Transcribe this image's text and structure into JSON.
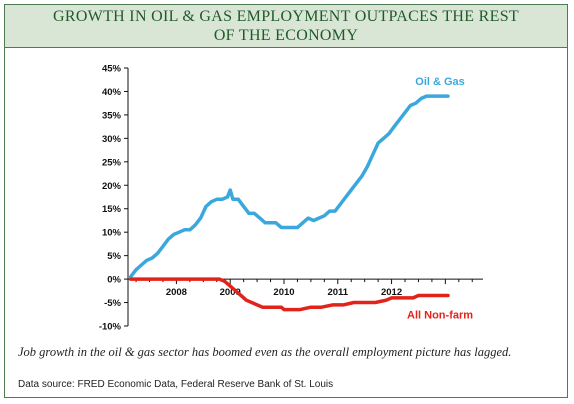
{
  "title": "GROWTH IN OIL & GAS EMPLOYMENT OUTPACES THE REST OF THE ECONOMY",
  "caption": "Job growth in the oil & gas sector has boomed even as the overall employment picture has lagged.",
  "source": "Data source: FRED Economic Data, Federal Reserve Bank of St. Louis",
  "colors": {
    "oil_gas": "#3aa8dc",
    "non_farm": "#e2231a",
    "title_bg": "#d9e6d5",
    "title_text": "#1f5b2a"
  },
  "chart_data": {
    "type": "line",
    "title": "",
    "xlabel": "",
    "ylabel": "",
    "xlim": [
      2007.1,
      2013.7
    ],
    "ylim": [
      -10,
      45
    ],
    "y_ticks": [
      -10,
      -5,
      0,
      5,
      10,
      15,
      20,
      25,
      30,
      35,
      40,
      45
    ],
    "y_tick_labels": [
      "-10%",
      "-5%",
      "0%",
      "5%",
      "10%",
      "15%",
      "20%",
      "25%",
      "30%",
      "35%",
      "40%",
      "45%"
    ],
    "x_ticks": [
      2008,
      2009,
      2010,
      2011,
      2012
    ],
    "x_tick_labels": [
      "2008",
      "2009",
      "2010",
      "2011",
      "2012"
    ],
    "grid": false,
    "series": [
      {
        "name": "Oil & Gas",
        "label_position": "top-right",
        "x": [
          2007.15,
          2007.25,
          2007.35,
          2007.45,
          2007.55,
          2007.65,
          2007.75,
          2007.85,
          2007.95,
          2008.05,
          2008.15,
          2008.25,
          2008.35,
          2008.45,
          2008.55,
          2008.65,
          2008.75,
          2008.85,
          2008.95,
          2009.0,
          2009.05,
          2009.15,
          2009.25,
          2009.35,
          2009.45,
          2009.55,
          2009.65,
          2009.75,
          2009.85,
          2009.95,
          2010.05,
          2010.15,
          2010.25,
          2010.35,
          2010.45,
          2010.55,
          2010.65,
          2010.75,
          2010.85,
          2010.95,
          2011.05,
          2011.15,
          2011.25,
          2011.35,
          2011.45,
          2011.55,
          2011.65,
          2011.75,
          2011.85,
          2011.95,
          2012.05,
          2012.15,
          2012.25,
          2012.35,
          2012.45,
          2012.55,
          2012.65,
          2012.75,
          2012.85,
          2012.95,
          2013.05
        ],
        "values": [
          0.5,
          2,
          3,
          4,
          4.5,
          5.5,
          7,
          8.5,
          9.5,
          10,
          10.5,
          10.5,
          11.5,
          13,
          15.5,
          16.5,
          17,
          17,
          17.5,
          19,
          17,
          17,
          15.5,
          14,
          14,
          13,
          12,
          12,
          12,
          11,
          11,
          11,
          11,
          12,
          13,
          12.5,
          13,
          13.5,
          14.5,
          14.5,
          16,
          17.5,
          19,
          20.5,
          22,
          24,
          26.5,
          29,
          30,
          31,
          32.5,
          34,
          35.5,
          37,
          37.5,
          38.5,
          39,
          39,
          39,
          39,
          39
        ]
      },
      {
        "name": "All Non-farm",
        "label_position": "bottom-right",
        "x": [
          2007.15,
          2007.4,
          2007.6,
          2007.8,
          2008.0,
          2008.2,
          2008.4,
          2008.6,
          2008.8,
          2008.9,
          2009.0,
          2009.1,
          2009.2,
          2009.3,
          2009.4,
          2009.5,
          2009.6,
          2009.8,
          2009.95,
          2010.0,
          2010.2,
          2010.3,
          2010.5,
          2010.7,
          2010.9,
          2011.1,
          2011.3,
          2011.5,
          2011.7,
          2011.9,
          2012.0,
          2012.2,
          2012.4,
          2012.5,
          2012.6,
          2012.8,
          2013.0,
          2013.05
        ],
        "values": [
          0,
          0,
          0,
          0,
          0,
          0,
          0,
          0,
          0,
          -0.5,
          -1.5,
          -2.5,
          -3.5,
          -4.5,
          -5,
          -5.5,
          -6,
          -6,
          -6,
          -6.5,
          -6.5,
          -6.5,
          -6,
          -6,
          -5.5,
          -5.5,
          -5,
          -5,
          -5,
          -4.5,
          -4,
          -4,
          -4,
          -3.5,
          -3.5,
          -3.5,
          -3.5,
          -3.5
        ]
      }
    ]
  }
}
